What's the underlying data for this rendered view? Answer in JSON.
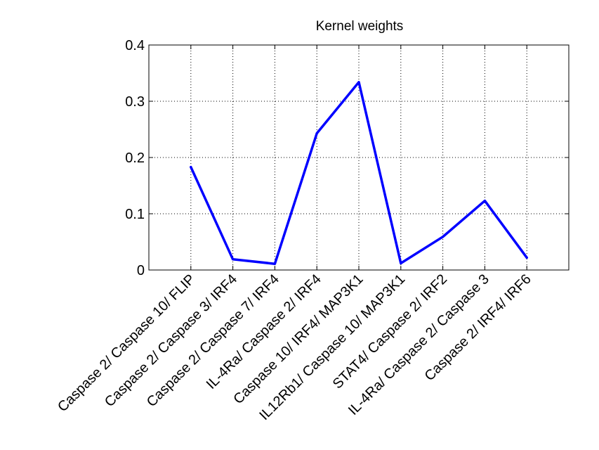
{
  "chart_data": {
    "type": "line",
    "title": "Kernel weights",
    "xlabel": "",
    "ylabel": "",
    "categories": [
      "Caspase 2/ Caspase 10/ FLIP",
      "Caspase 2/ Caspase 3/ IRF4",
      "Caspase 2/ Caspase 7/ IRF4",
      "IL-4Ra/ Caspase 2/ IRF4",
      "Caspase 10/ IRF4/ MAP3K1",
      "IL12Rb1/ Caspase 10/ MAP3K1",
      "STAT4/ Caspase 2/ IRF2",
      "IL-4Ra/ Caspase 2/ Caspase 3",
      "Caspase 2/ IRF4/ IRF6"
    ],
    "series": [
      {
        "values": [
          0.183,
          0.019,
          0.011,
          0.243,
          0.334,
          0.012,
          0.059,
          0.123,
          0.022
        ],
        "color": "#0000ff"
      }
    ],
    "ylim": [
      0,
      0.4
    ],
    "yticks": [
      "0",
      "0.1",
      "0.2",
      "0.3",
      "0.4"
    ],
    "xlim": [
      0,
      10
    ],
    "grid": true,
    "grid_style": "dotted"
  }
}
